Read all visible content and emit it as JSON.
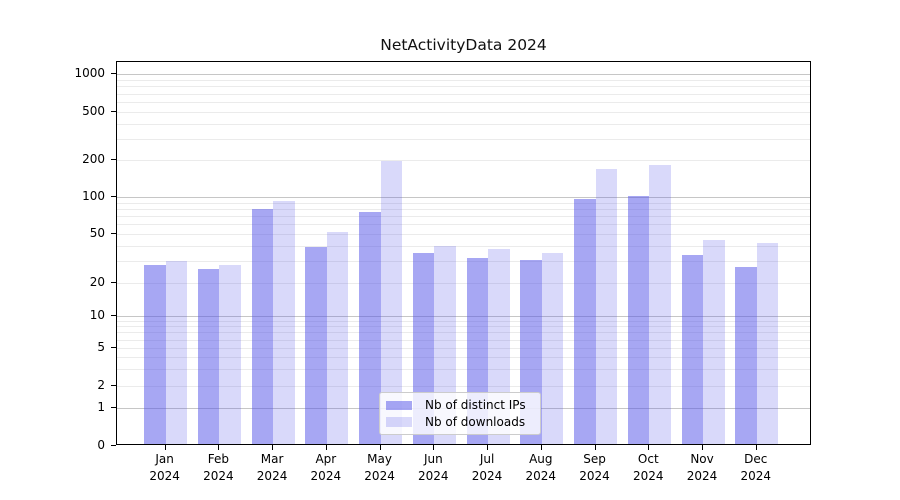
{
  "chart_data": {
    "type": "bar",
    "title": "NetActivityData 2024",
    "categories": [
      "Jan 2024",
      "Feb 2024",
      "Mar 2024",
      "Apr 2024",
      "May 2024",
      "Jun 2024",
      "Jul 2024",
      "Aug 2024",
      "Sep 2024",
      "Oct 2024",
      "Nov 2024",
      "Dec 2024"
    ],
    "series": [
      {
        "name": "Nb of distinct IPs",
        "color": "rgba(80,80,232,0.5)",
        "values": [
          28,
          26,
          80,
          39,
          75,
          35,
          32,
          31,
          96,
          102,
          34,
          27
        ]
      },
      {
        "name": "Nb of downloads",
        "color": "rgba(80,80,232,0.22)",
        "values": [
          30,
          28,
          93,
          52,
          197,
          40,
          38,
          35,
          170,
          182,
          45,
          42
        ]
      }
    ],
    "xlabel": "",
    "ylabel": "",
    "yscale": "symlog",
    "y_ticks": [
      1000,
      500,
      200,
      100,
      50,
      20,
      10,
      5,
      2,
      1,
      0
    ],
    "ylim": [
      0,
      1200
    ],
    "grid": "on",
    "grid_major_at": [
      1,
      10,
      100,
      1000
    ],
    "legend_position": "lower-center-inside",
    "legend_items": [
      "Nb of distinct IPs",
      "Nb of downloads"
    ]
  },
  "colors": {
    "bar_distinct_ips": "rgba(80,80,232,0.5)",
    "bar_downloads": "rgba(80,80,232,0.22)",
    "grid_minor": "#ebebeb",
    "grid_major": "#c6c6c6",
    "axis": "#000000",
    "background": "#ffffff"
  }
}
